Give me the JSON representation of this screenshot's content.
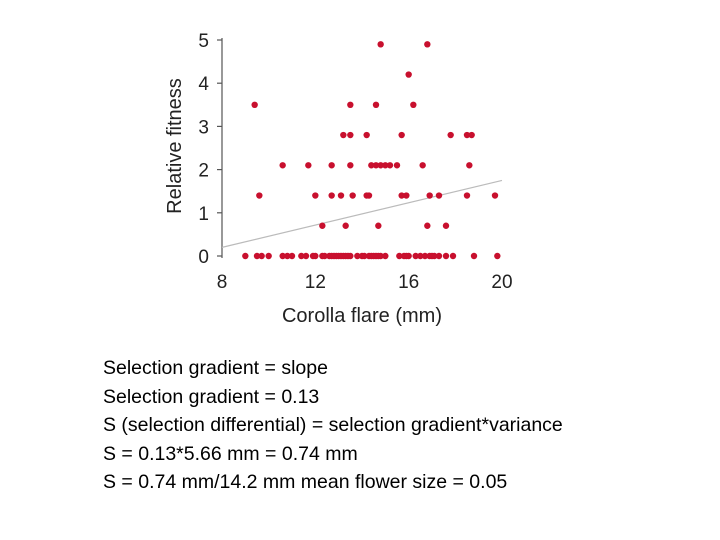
{
  "chart_data": {
    "type": "scatter",
    "xlabel": "Corolla flare (mm)",
    "ylabel": "Relative fitness",
    "xlim": [
      8,
      20
    ],
    "ylim": [
      0,
      5
    ],
    "xticks": [
      8,
      12,
      16,
      20
    ],
    "yticks": [
      0,
      1,
      2,
      3,
      4,
      5
    ],
    "grid": false,
    "legend": "none",
    "point_color": "#c8102e",
    "trend_color": "#bbbbbb",
    "trend_line": {
      "slope": 0.13,
      "x": [
        8,
        20
      ],
      "y": [
        0.2,
        1.75
      ]
    },
    "points": [
      [
        9.0,
        0
      ],
      [
        9.5,
        0
      ],
      [
        9.7,
        0
      ],
      [
        10.0,
        0
      ],
      [
        10.6,
        0
      ],
      [
        10.8,
        0
      ],
      [
        11.0,
        0
      ],
      [
        11.4,
        0
      ],
      [
        11.6,
        0
      ],
      [
        11.9,
        0
      ],
      [
        12.0,
        0
      ],
      [
        12.3,
        0
      ],
      [
        12.4,
        0
      ],
      [
        12.6,
        0
      ],
      [
        12.7,
        0
      ],
      [
        12.8,
        0
      ],
      [
        12.9,
        0
      ],
      [
        13.0,
        0
      ],
      [
        13.1,
        0
      ],
      [
        13.2,
        0
      ],
      [
        13.3,
        0
      ],
      [
        13.4,
        0
      ],
      [
        13.5,
        0
      ],
      [
        13.8,
        0
      ],
      [
        14.0,
        0
      ],
      [
        14.1,
        0
      ],
      [
        14.3,
        0
      ],
      [
        14.4,
        0
      ],
      [
        14.5,
        0
      ],
      [
        14.6,
        0
      ],
      [
        14.7,
        0
      ],
      [
        14.8,
        0
      ],
      [
        15.0,
        0
      ],
      [
        15.6,
        0
      ],
      [
        15.8,
        0
      ],
      [
        15.9,
        0
      ],
      [
        16.0,
        0
      ],
      [
        16.3,
        0
      ],
      [
        16.5,
        0
      ],
      [
        16.7,
        0
      ],
      [
        16.9,
        0
      ],
      [
        17.0,
        0
      ],
      [
        17.1,
        0
      ],
      [
        17.3,
        0
      ],
      [
        17.6,
        0
      ],
      [
        17.9,
        0
      ],
      [
        18.8,
        0
      ],
      [
        19.8,
        0
      ],
      [
        12.3,
        0.7
      ],
      [
        13.3,
        0.7
      ],
      [
        14.7,
        0.7
      ],
      [
        16.8,
        0.7
      ],
      [
        17.6,
        0.7
      ],
      [
        9.6,
        1.4
      ],
      [
        12.0,
        1.4
      ],
      [
        12.7,
        1.4
      ],
      [
        13.1,
        1.4
      ],
      [
        13.6,
        1.4
      ],
      [
        14.2,
        1.4
      ],
      [
        14.3,
        1.4
      ],
      [
        15.7,
        1.4
      ],
      [
        15.9,
        1.4
      ],
      [
        16.9,
        1.4
      ],
      [
        17.3,
        1.4
      ],
      [
        18.5,
        1.4
      ],
      [
        19.7,
        1.4
      ],
      [
        10.6,
        2.1
      ],
      [
        11.7,
        2.1
      ],
      [
        12.7,
        2.1
      ],
      [
        13.5,
        2.1
      ],
      [
        14.4,
        2.1
      ],
      [
        14.6,
        2.1
      ],
      [
        14.8,
        2.1
      ],
      [
        15.0,
        2.1
      ],
      [
        15.2,
        2.1
      ],
      [
        15.5,
        2.1
      ],
      [
        16.6,
        2.1
      ],
      [
        18.6,
        2.1
      ],
      [
        13.2,
        2.8
      ],
      [
        13.5,
        2.8
      ],
      [
        14.2,
        2.8
      ],
      [
        15.7,
        2.8
      ],
      [
        17.8,
        2.8
      ],
      [
        18.5,
        2.8
      ],
      [
        18.7,
        2.8
      ],
      [
        9.4,
        3.5
      ],
      [
        13.5,
        3.5
      ],
      [
        14.6,
        3.5
      ],
      [
        16.2,
        3.5
      ],
      [
        16.0,
        4.2
      ],
      [
        14.8,
        4.9
      ],
      [
        16.8,
        4.9
      ]
    ]
  },
  "notes": [
    "Selection gradient = slope",
    "Selection gradient = 0.13",
    "S (selection differential) = selection gradient*variance",
    "S = 0.13*5.66 mm = 0.74 mm",
    "S = 0.74 mm/14.2 mm mean flower size = 0.05"
  ]
}
